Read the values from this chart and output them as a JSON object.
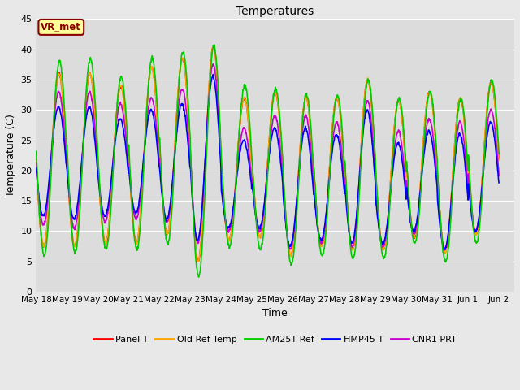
{
  "title": "Temperatures",
  "xlabel": "Time",
  "ylabel": "Temperature (C)",
  "ylim": [
    0,
    45
  ],
  "n_cycles": 15,
  "annotation_text": "VR_met",
  "annotation_color": "#8B0000",
  "annotation_bg": "#FFFF99",
  "series": [
    {
      "label": "Panel T",
      "color": "#FF0000",
      "lw": 1.2
    },
    {
      "label": "Old Ref Temp",
      "color": "#FFA500",
      "lw": 1.2
    },
    {
      "label": "AM25T Ref",
      "color": "#00CC00",
      "lw": 1.2
    },
    {
      "label": "HMP45 T",
      "color": "#0000FF",
      "lw": 1.2
    },
    {
      "label": "CNR1 PRT",
      "color": "#CC00CC",
      "lw": 1.2
    }
  ],
  "tick_labels": [
    "May 18",
    "May 19",
    "May 20",
    "May 21",
    "May 22",
    "May 23",
    "May 24",
    "May 25",
    "May 26",
    "May 27",
    "May 28",
    "May 29",
    "May 30",
    "May 31",
    "Jun 1",
    "Jun 2"
  ],
  "tick_positions": [
    0,
    1,
    2,
    3,
    4,
    5,
    6,
    7,
    8,
    9,
    10,
    11,
    12,
    13,
    14,
    15
  ],
  "daily_mins": [
    7.5,
    7.5,
    8.0,
    8.0,
    9.5,
    5.0,
    8.5,
    9.0,
    6.0,
    7.5,
    7.0,
    7.0,
    9.0,
    6.5,
    9.5
  ],
  "daily_maxs": [
    36.0,
    36.0,
    34.0,
    37.0,
    38.5,
    40.5,
    32.0,
    33.0,
    32.0,
    32.0,
    35.0,
    31.5,
    33.0,
    32.0,
    34.5
  ],
  "green_min_offset": [
    -1.5,
    -1.0,
    -1.0,
    -1.0,
    -1.5,
    -2.5,
    -1.0,
    -2.0,
    -1.5,
    -1.5,
    -1.5,
    -1.5,
    -1.0,
    -1.5,
    -1.5
  ],
  "green_max_offset": [
    2.0,
    2.5,
    1.5,
    1.5,
    1.0,
    0.0,
    2.0,
    0.5,
    0.5,
    0.5,
    0.0,
    0.5,
    0.0,
    0.0,
    0.5
  ],
  "blue_min_offset": [
    5.0,
    4.5,
    4.5,
    5.0,
    2.5,
    3.5,
    2.0,
    1.5,
    1.5,
    1.0,
    1.0,
    1.0,
    1.0,
    0.5,
    0.5
  ],
  "blue_max_offset": [
    -5.5,
    -5.5,
    -5.5,
    -7.0,
    -7.5,
    -5.0,
    -7.0,
    -6.0,
    -5.0,
    -6.0,
    -5.0,
    -7.0,
    -6.5,
    -6.0,
    -6.5
  ],
  "purple_min_offset": [
    3.5,
    3.0,
    3.5,
    4.0,
    2.0,
    3.0,
    1.5,
    1.0,
    1.0,
    0.5,
    0.5,
    0.5,
    0.5,
    0.5,
    0.5
  ],
  "purple_max_offset": [
    -3.0,
    -3.0,
    -3.0,
    -5.0,
    -5.0,
    -3.0,
    -5.0,
    -4.0,
    -3.0,
    -4.0,
    -3.5,
    -5.0,
    -4.5,
    -4.0,
    -4.5
  ],
  "yticks": [
    0,
    5,
    10,
    15,
    20,
    25,
    30,
    35,
    40,
    45
  ],
  "fig_width": 6.4,
  "fig_height": 4.8,
  "dpi": 100,
  "bg_color": "#E8E8E8",
  "plot_bg_color": "#DCDCDC",
  "grid_color": "#FFFFFF"
}
